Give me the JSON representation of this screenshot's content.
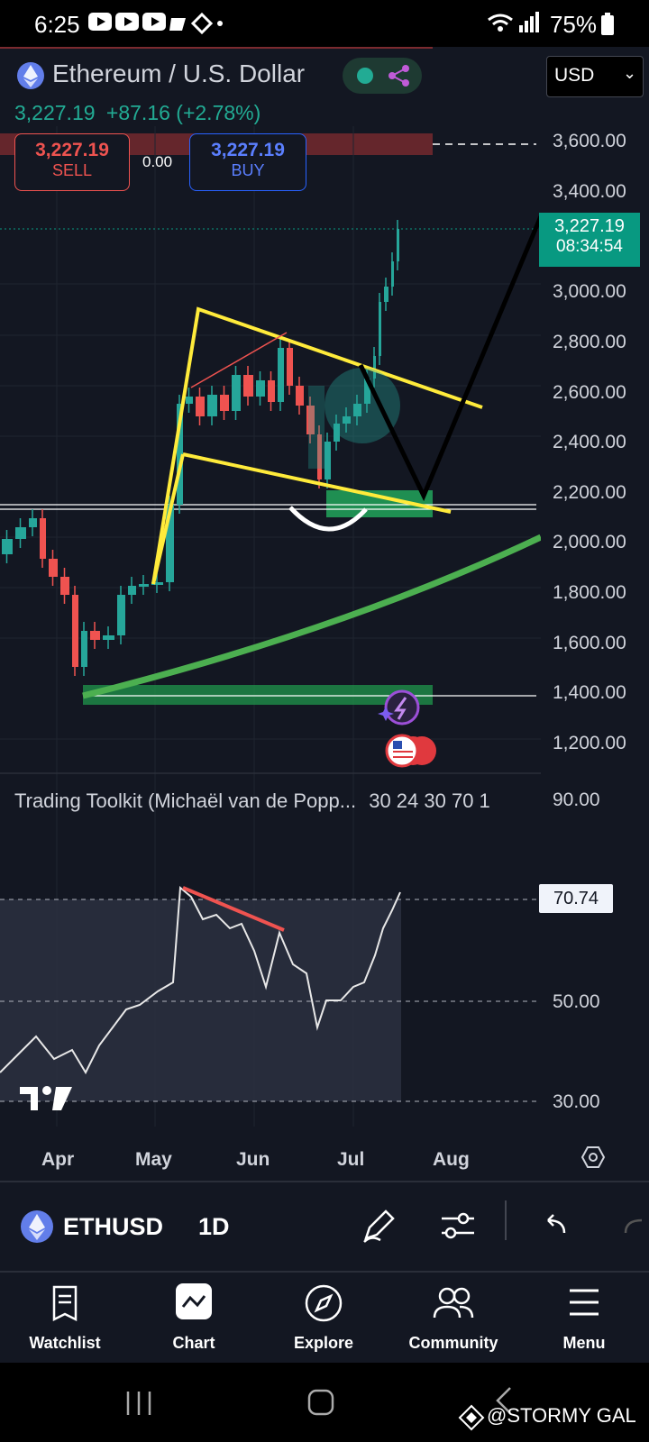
{
  "status_bar": {
    "time": "6:25",
    "battery": "75%"
  },
  "header": {
    "symbol_title": "Ethereum / U.S. Dollar",
    "price": "3,227.19",
    "change": "+87.16 (+2.78%)",
    "currency": "USD"
  },
  "trade": {
    "sell_price": "3,227.19",
    "sell_label": "SELL",
    "spread": "0.00",
    "buy_price": "3,227.19",
    "buy_label": "BUY"
  },
  "price_axis": {
    "ticks": [
      "3,600.00",
      "3,400.00",
      "3,000.00",
      "2,800.00",
      "2,600.00",
      "2,400.00",
      "2,200.00",
      "2,000.00",
      "1,800.00",
      "1,600.00",
      "1,400.00",
      "1,200.00"
    ],
    "current_price_label": "3,227.19",
    "countdown": "08:34:54"
  },
  "indicator": {
    "title": "Trading Toolkit (Michaël van de Popp...",
    "params": "30 24 30 70 1",
    "axis_ticks": [
      "90.00",
      "50.00",
      "30.00"
    ],
    "current_value": "70.74"
  },
  "time_axis": {
    "months": [
      "Apr",
      "May",
      "Jun",
      "Jul",
      "Aug"
    ]
  },
  "toolbar": {
    "symbol": "ETHUSD",
    "interval": "1D"
  },
  "bottom_nav": {
    "items": [
      {
        "label": "Watchlist",
        "icon": "watchlist-icon"
      },
      {
        "label": "Chart",
        "icon": "chart-icon"
      },
      {
        "label": "Explore",
        "icon": "compass-icon"
      },
      {
        "label": "Community",
        "icon": "community-icon"
      },
      {
        "label": "Menu",
        "icon": "menu-icon"
      }
    ]
  },
  "watermark": "@STORMY GAL",
  "colors": {
    "bg": "#131722",
    "up": "#26a69a",
    "down": "#ef5350",
    "accent": "#089981",
    "trendline": "#ffeb3b"
  }
}
